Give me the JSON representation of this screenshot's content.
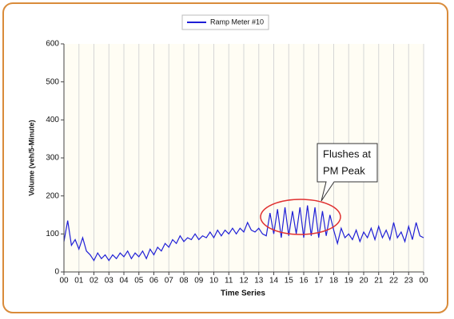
{
  "chart_data": {
    "type": "line",
    "axis_labels": {
      "x": "Time Series",
      "y": "Volume (veh/5-Minute)"
    },
    "annotation": [
      "Flushes at",
      "PM Peak"
    ],
    "x": [
      0,
      0.25,
      0.5,
      0.75,
      1,
      1.25,
      1.5,
      1.75,
      2,
      2.25,
      2.5,
      2.75,
      3,
      3.25,
      3.5,
      3.75,
      4,
      4.25,
      4.5,
      4.75,
      5,
      5.25,
      5.5,
      5.75,
      6,
      6.25,
      6.5,
      6.75,
      7,
      7.25,
      7.5,
      7.75,
      8,
      8.25,
      8.5,
      8.75,
      9,
      9.25,
      9.5,
      9.75,
      10,
      10.25,
      10.5,
      10.75,
      11,
      11.25,
      11.5,
      11.75,
      12,
      12.25,
      12.5,
      12.75,
      13,
      13.25,
      13.5,
      13.75,
      14,
      14.25,
      14.5,
      14.75,
      15,
      15.25,
      15.5,
      15.75,
      16,
      16.25,
      16.5,
      16.75,
      17,
      17.25,
      17.5,
      17.75,
      18,
      18.25,
      18.5,
      18.75,
      19,
      19.25,
      19.5,
      19.75,
      20,
      20.25,
      20.5,
      20.75,
      21,
      21.25,
      21.5,
      21.75,
      22,
      22.25,
      22.5,
      22.75,
      23,
      23.25,
      23.5,
      23.75,
      24
    ],
    "series": [
      {
        "name": "Ramp Meter #10",
        "color": "#1f1fd6",
        "values": [
          80,
          135,
          70,
          85,
          60,
          90,
          55,
          45,
          30,
          50,
          35,
          45,
          30,
          45,
          35,
          50,
          40,
          55,
          35,
          50,
          40,
          55,
          35,
          60,
          45,
          65,
          55,
          75,
          65,
          85,
          75,
          95,
          80,
          90,
          85,
          100,
          85,
          95,
          90,
          105,
          90,
          110,
          95,
          110,
          100,
          115,
          100,
          115,
          105,
          130,
          110,
          105,
          115,
          100,
          95,
          155,
          100,
          165,
          90,
          170,
          95,
          160,
          100,
          170,
          90,
          175,
          95,
          170,
          90,
          160,
          95,
          150,
          110,
          75,
          115,
          90,
          100,
          85,
          110,
          80,
          105,
          90,
          115,
          85,
          120,
          90,
          110,
          85,
          130,
          90,
          105,
          80,
          120,
          85,
          130,
          95,
          90
        ]
      }
    ],
    "xlim": [
      0,
      24
    ],
    "xticks": [
      {
        "value": 0,
        "label": "00"
      },
      {
        "value": 1,
        "label": "01"
      },
      {
        "value": 2,
        "label": "02"
      },
      {
        "value": 3,
        "label": "03"
      },
      {
        "value": 4,
        "label": "04"
      },
      {
        "value": 5,
        "label": "05"
      },
      {
        "value": 6,
        "label": "06"
      },
      {
        "value": 7,
        "label": "07"
      },
      {
        "value": 8,
        "label": "08"
      },
      {
        "value": 9,
        "label": "09"
      },
      {
        "value": 10,
        "label": "10"
      },
      {
        "value": 11,
        "label": "11"
      },
      {
        "value": 12,
        "label": "12"
      },
      {
        "value": 13,
        "label": "13"
      },
      {
        "value": 14,
        "label": "14"
      },
      {
        "value": 15,
        "label": "15"
      },
      {
        "value": 16,
        "label": "16"
      },
      {
        "value": 17,
        "label": "17"
      },
      {
        "value": 18,
        "label": "18"
      },
      {
        "value": 19,
        "label": "19"
      },
      {
        "value": 20,
        "label": "20"
      },
      {
        "value": 21,
        "label": "21"
      },
      {
        "value": 22,
        "label": "22"
      },
      {
        "value": 23,
        "label": "23"
      },
      {
        "value": 24,
        "label": "00"
      }
    ],
    "ylim": [
      0,
      600
    ],
    "yticks": [
      0,
      100,
      200,
      300,
      400,
      500,
      600
    ],
    "grid": "x"
  }
}
